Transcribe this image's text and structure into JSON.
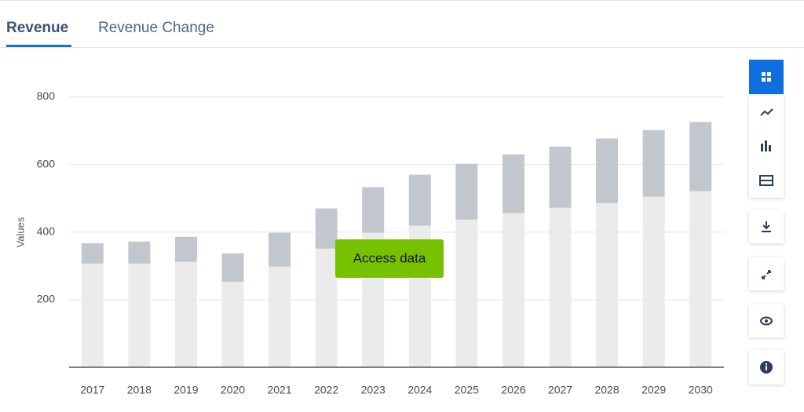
{
  "tabs": [
    "Revenue",
    "Revenue Change"
  ],
  "button": "Access data",
  "chart_data": {
    "type": "stacked-bar",
    "y_label": "Values",
    "categories": [
      "2017",
      "2018",
      "2019",
      "2020",
      "2021",
      "2022",
      "2023",
      "2024",
      "2025",
      "2026",
      "2027",
      "2028",
      "2029",
      "2030"
    ],
    "series": [
      {
        "color": "#ebebeb",
        "values": [
          307,
          307,
          312,
          253,
          298,
          351,
          398,
          419,
          437,
          456,
          472,
          486,
          505,
          521
        ]
      },
      {
        "color": "#c2c7ce",
        "values": [
          60,
          65,
          74,
          84,
          100,
          119,
          135,
          151,
          165,
          174,
          181,
          191,
          197,
          205
        ]
      }
    ],
    "ylim": [
      0,
      850
    ],
    "yticks": [
      200,
      400,
      600,
      800
    ],
    "grid": true
  }
}
